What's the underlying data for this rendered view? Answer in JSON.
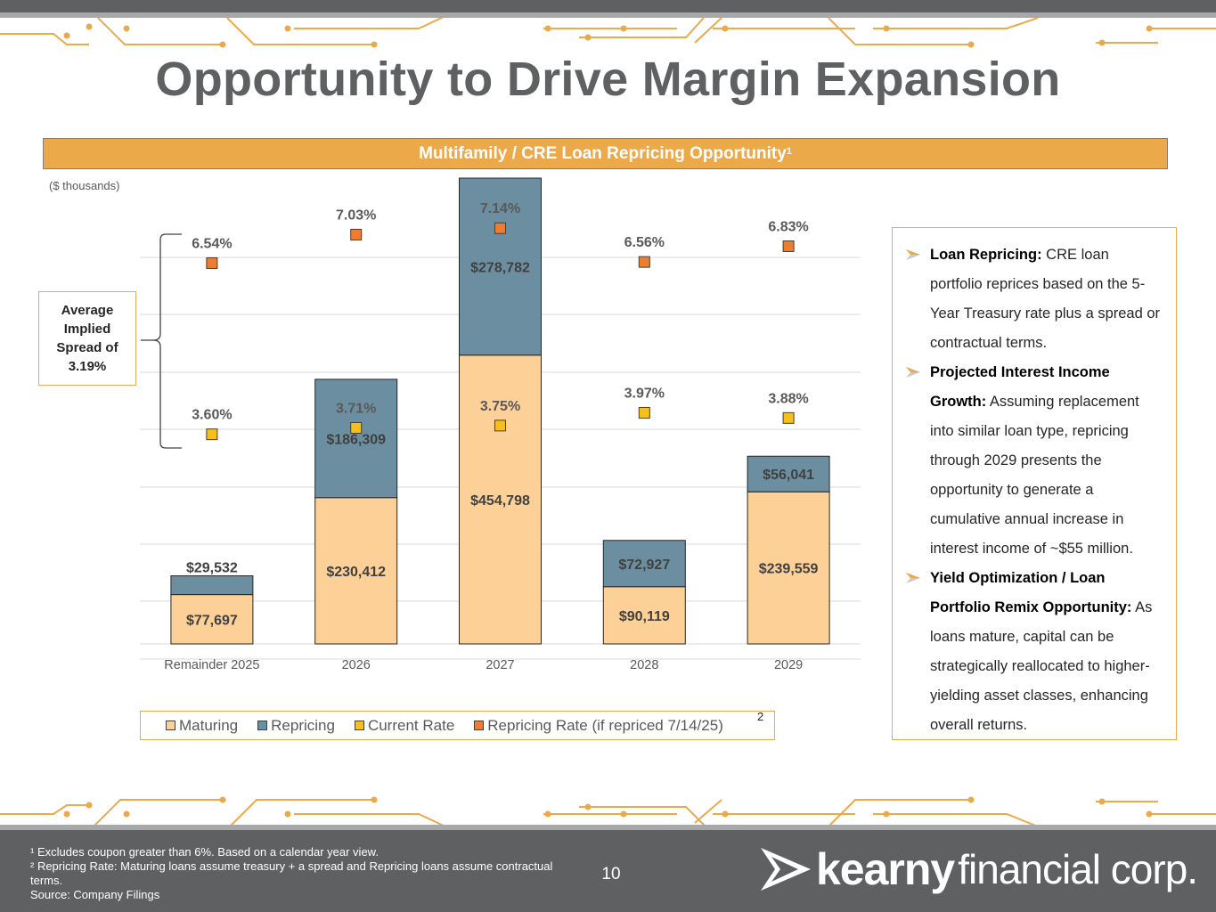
{
  "title": "Opportunity to Drive Margin Expansion",
  "banner": {
    "label": "Multifamily / CRE Loan Repricing Opportunity",
    "superscript": "1"
  },
  "units_label": "($ thousands)",
  "spread_box": {
    "text": "Average Implied Spread of 3.19%"
  },
  "legend": {
    "maturing": "Maturing",
    "repricing": "Repricing",
    "current_rate": "Current Rate",
    "repricing_rate": "Repricing Rate (if repriced 7/14/25)",
    "note_marker": "2"
  },
  "colors": {
    "maturing": "#fcd097",
    "repricing": "#6b8fa0",
    "current_rate": "#f7bf1c",
    "repricing_rate": "#ed7d31",
    "accent": "#eca94a",
    "dark_gray": "#5f6062"
  },
  "chart_data": {
    "type": "bar",
    "stacked": true,
    "categories": [
      "Remainder 2025",
      "2026",
      "2027",
      "2028",
      "2029"
    ],
    "series": [
      {
        "name": "Maturing",
        "values": [
          77697,
          230412,
          454798,
          90119,
          239559
        ],
        "labels": [
          "$77,697",
          "$230,412",
          "$454,798",
          "$90,119",
          "$239,559"
        ]
      },
      {
        "name": "Repricing",
        "values": [
          29532,
          186309,
          278782,
          72927,
          56041
        ],
        "labels": [
          "$29,532",
          "$186,309",
          "$278,782",
          "$72,927",
          "$56,041"
        ]
      }
    ],
    "rate_series": [
      {
        "name": "Current Rate",
        "type": "scatter",
        "values": [
          3.6,
          3.71,
          3.75,
          3.97,
          3.88
        ],
        "labels": [
          "3.60%",
          "3.71%",
          "3.75%",
          "3.97%",
          "3.88%"
        ]
      },
      {
        "name": "Repricing Rate (if repriced 7/14/25)",
        "type": "scatter",
        "values": [
          6.54,
          7.03,
          7.14,
          6.56,
          6.83
        ],
        "labels": [
          "6.54%",
          "7.03%",
          "7.14%",
          "6.56%",
          "6.83%"
        ]
      }
    ],
    "bar_axis_max": 733580,
    "rate_axis_range": [
      0,
      8
    ],
    "gridlines": true,
    "legend_position": "bottom"
  },
  "sidebar": {
    "bullets": [
      {
        "title": "Loan Repricing:",
        "text": " CRE loan portfolio reprices based on the 5-Year Treasury rate plus a spread or contractual terms."
      },
      {
        "title": "Projected Interest Income Growth:",
        "text": " Assuming replacement into similar loan type, repricing through 2029 presents the opportunity to generate a cumulative annual increase in interest income of ~$55 million."
      },
      {
        "title": "Yield Optimization / Loan Portfolio Remix Opportunity:",
        "text": " As loans mature, capital can be strategically reallocated to higher-yielding asset classes, enhancing overall returns."
      }
    ]
  },
  "footer": {
    "note1": "¹ Excludes coupon greater than 6%. Based on a calendar year view.",
    "note2": "² Repricing Rate: Maturing loans assume treasury + a spread and Repricing loans assume contractual terms.",
    "source": "Source: Company Filings",
    "page_number": "10",
    "logo_word1": "kearny",
    "logo_word2": "financial corp."
  }
}
